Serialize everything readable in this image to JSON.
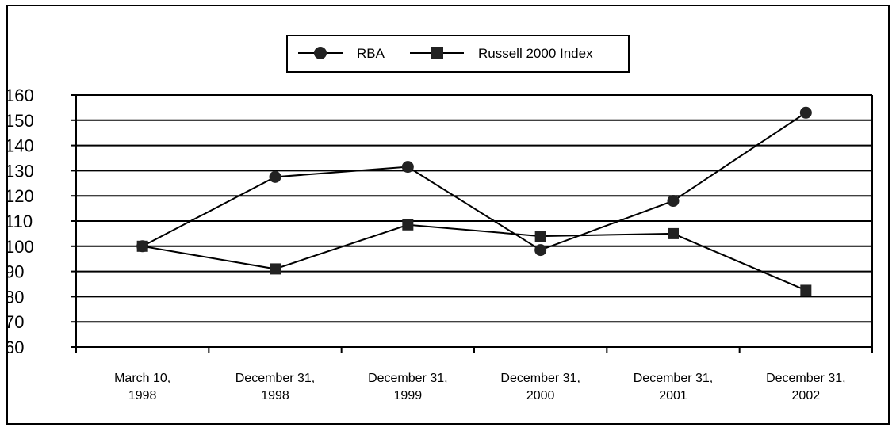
{
  "chart_data": {
    "type": "line",
    "categories": [
      [
        "March 10,",
        "1998"
      ],
      [
        "December 31,",
        "1998"
      ],
      [
        "December 31,",
        "1999"
      ],
      [
        "December 31,",
        "2000"
      ],
      [
        "December 31,",
        "2001"
      ],
      [
        "December 31,",
        "2002"
      ]
    ],
    "series": [
      {
        "name": "RBA",
        "marker": "circle",
        "values": [
          100,
          127.5,
          131.5,
          98.5,
          118,
          153
        ]
      },
      {
        "name": "Russell 2000 Index",
        "marker": "square",
        "values": [
          100,
          91,
          108.5,
          104,
          105,
          82.5
        ]
      }
    ],
    "ylim": [
      60,
      160
    ],
    "yticks": [
      60,
      70,
      80,
      90,
      100,
      110,
      120,
      130,
      140,
      150,
      160
    ],
    "grid": true,
    "legend_position": "top-center",
    "colors": {
      "line": "#000000",
      "marker": "#222222",
      "grid": "#000000"
    }
  }
}
